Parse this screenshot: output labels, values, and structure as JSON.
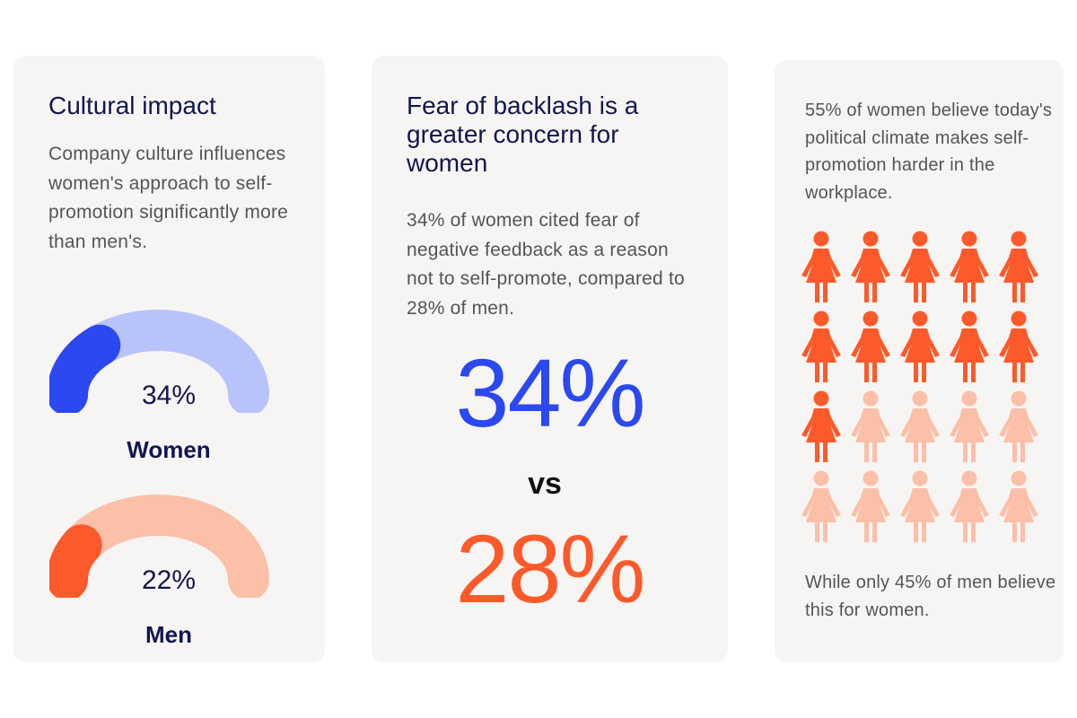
{
  "card1": {
    "title": "Cultural impact",
    "description": "Company culture influences women's approach to self-promotion significantly more than men's.",
    "women": {
      "value_text": "34%",
      "label": "Women",
      "fraction": 0.34,
      "track_color": "#b9c3fb",
      "fill_color": "#2c48f0"
    },
    "men": {
      "value_text": "22%",
      "label": "Men",
      "fraction": 0.22,
      "track_color": "#fcbfa7",
      "fill_color": "#fc5a2a"
    }
  },
  "card2": {
    "title": "Fear of backlash is a greater concern for women",
    "description": "34% of women cited fear of negative feedback as a reason not to self-promote, compared to 28% of men.",
    "women_big": "34%",
    "vs": "vs",
    "men_big": "28%",
    "women_color": "#2c48f0",
    "men_color": "#fc5a2a"
  },
  "card3": {
    "description": "55% of women believe today's political climate makes self-promotion harder in the workplace.",
    "icons_total": 20,
    "icons_highlighted": 11,
    "icon_name": "woman-icon",
    "highlight_color": "#fc5a2a",
    "muted_color": "#fcbfa7",
    "footer": "While only 45% of men believe this for women."
  }
}
